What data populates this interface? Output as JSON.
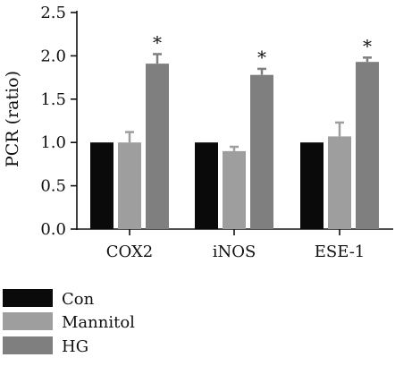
{
  "chart_data": {
    "type": "bar",
    "title": "",
    "xlabel": "",
    "ylabel": "PCR (ratio)",
    "ylim": [
      0,
      2.5
    ],
    "yticks": [
      "0.0",
      "0.5",
      "1.0",
      "1.5",
      "2.0",
      "2.5"
    ],
    "categories": [
      "COX2",
      "iNOS",
      "ESE-1"
    ],
    "series": [
      {
        "name": "Con",
        "color": "#0a0a0a",
        "values": [
          1.0,
          1.0,
          1.0
        ],
        "errors": [
          0,
          0,
          0
        ],
        "marks": [
          "",
          "",
          ""
        ]
      },
      {
        "name": "Mannitol",
        "color": "#9e9e9e",
        "values": [
          1.0,
          0.9,
          1.07
        ],
        "errors": [
          0.12,
          0.05,
          0.16
        ],
        "marks": [
          "",
          "",
          ""
        ]
      },
      {
        "name": "HG",
        "color": "#7f7f7f",
        "values": [
          1.91,
          1.78,
          1.93
        ],
        "errors": [
          0.11,
          0.07,
          0.05
        ],
        "marks": [
          "*",
          "*",
          "*"
        ]
      }
    ],
    "grid": false,
    "legend_position": "bottom-left"
  }
}
